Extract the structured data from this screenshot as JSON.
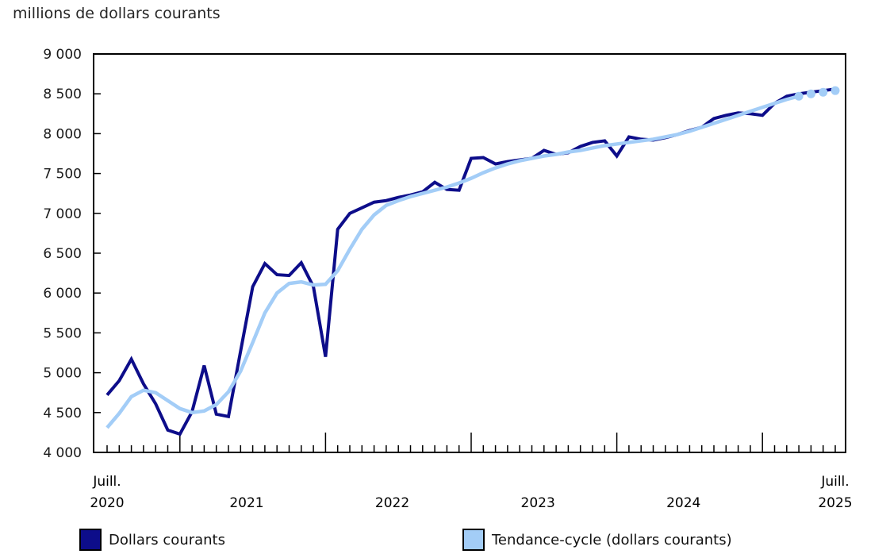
{
  "chart_data": {
    "type": "line",
    "title": "millions de dollars courants",
    "frequency": "monthly",
    "x_start": "Juillet 2020",
    "x_end": "Juillet 2025",
    "grid": false,
    "legend_position": "bottom",
    "y_axis": {
      "min": 4000,
      "max": 9000,
      "step": 500,
      "tick_labels": [
        "4 000",
        "4 500",
        "5 000",
        "5 500",
        "6 000",
        "6 500",
        "7 000",
        "7 500",
        "8 000",
        "8 500",
        "9 000"
      ]
    },
    "x_axis": {
      "months_total": 61,
      "january_tick_indices": [
        6,
        18,
        30,
        42,
        54
      ],
      "start_label": {
        "line1": "Juill.",
        "line2": "2020"
      },
      "end_label": {
        "line1": "Juill.",
        "line2": "2025"
      },
      "year_labels": [
        "2021",
        "2022",
        "2023",
        "2024"
      ]
    },
    "series": [
      {
        "name": "Dollars courants",
        "color": "#0d0d8a",
        "values": [
          4720,
          4900,
          5170,
          4860,
          4610,
          4280,
          4230,
          4510,
          5090,
          4480,
          4450,
          5270,
          6080,
          6370,
          6230,
          6220,
          6380,
          6080,
          5200,
          6800,
          7000,
          7070,
          7140,
          7160,
          7200,
          7230,
          7270,
          7390,
          7300,
          7290,
          7690,
          7700,
          7620,
          7650,
          7670,
          7690,
          7790,
          7740,
          7760,
          7840,
          7890,
          7910,
          7720,
          7960,
          7930,
          7920,
          7950,
          7990,
          8040,
          8080,
          8190,
          8230,
          8260,
          8250,
          8230,
          8380,
          8470,
          8500,
          8520,
          8540,
          8560
        ]
      },
      {
        "name": "Tendance-cycle (dollars courants)",
        "color": "#a3cdf7",
        "trailing_dot_count": 4,
        "values": [
          4310,
          4490,
          4700,
          4780,
          4750,
          4650,
          4550,
          4500,
          4520,
          4600,
          4760,
          5020,
          5380,
          5750,
          6000,
          6120,
          6140,
          6100,
          6110,
          6280,
          6550,
          6800,
          6980,
          7100,
          7160,
          7210,
          7250,
          7290,
          7330,
          7380,
          7440,
          7510,
          7570,
          7620,
          7660,
          7690,
          7720,
          7740,
          7770,
          7790,
          7820,
          7850,
          7870,
          7890,
          7910,
          7930,
          7960,
          7990,
          8030,
          8080,
          8130,
          8180,
          8230,
          8280,
          8330,
          8380,
          8430,
          8470,
          8500,
          8520,
          8540
        ]
      }
    ]
  }
}
